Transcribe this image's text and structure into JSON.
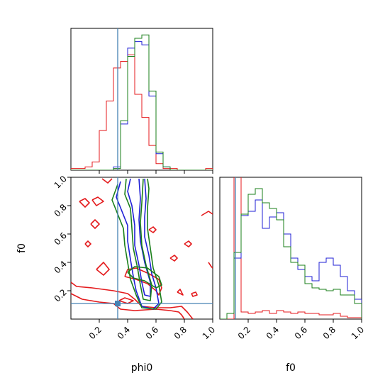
{
  "chart_data": {
    "type": "corner",
    "parameters": [
      "phi0",
      "f0"
    ],
    "axis_titles": {
      "x_left": "phi0",
      "x_right": "f0",
      "y_left": "f0"
    },
    "ranges": {
      "phi0": [
        0,
        1
      ],
      "f0": [
        0,
        1
      ]
    },
    "ticks": {
      "phi0": [
        0.2,
        0.4,
        0.6,
        0.8,
        1.0
      ],
      "f0": [
        0.2,
        0.4,
        0.6,
        0.8,
        1.0
      ]
    },
    "tick_labels": {
      "phi0": [
        "0.2",
        "0.4",
        "0.6",
        "0.8",
        "1.0"
      ],
      "f0": [
        "0.2",
        "0.4",
        "0.6",
        "0.8",
        "1.0"
      ]
    },
    "truth": {
      "phi0": 0.33,
      "f0": 0.11
    },
    "colors": {
      "red": "#e41a1c",
      "blue": "#1f1fd6",
      "green": "#1a7f1a",
      "truth": "#4682b4"
    },
    "hist_phi0": {
      "bin_edges": [
        0,
        0.05,
        0.1,
        0.15,
        0.2,
        0.25,
        0.3,
        0.35,
        0.4,
        0.45,
        0.5,
        0.55,
        0.6,
        0.65,
        0.7,
        0.75,
        0.8,
        0.85,
        0.9,
        0.95,
        1.0
      ],
      "series": [
        {
          "color": "red",
          "values": [
            0.01,
            0.01,
            0.02,
            0.05,
            0.24,
            0.42,
            0.62,
            0.66,
            0.7,
            0.46,
            0.32,
            0.15,
            0.04,
            0.01,
            0.01,
            0,
            0,
            0,
            0,
            0.01
          ]
        },
        {
          "color": "blue",
          "values": [
            0,
            0,
            0,
            0,
            0,
            0,
            0.02,
            0.28,
            0.74,
            0.78,
            0.76,
            0.45,
            0.1,
            0.02,
            0,
            0,
            0,
            0,
            0,
            0
          ]
        },
        {
          "color": "green",
          "values": [
            0,
            0,
            0,
            0,
            0,
            0,
            0.01,
            0.3,
            0.69,
            0.8,
            0.82,
            0.48,
            0.11,
            0.02,
            0,
            0,
            0,
            0,
            0,
            0
          ]
        }
      ]
    },
    "hist_f0": {
      "bin_edges": [
        0,
        0.05,
        0.1,
        0.15,
        0.2,
        0.25,
        0.3,
        0.35,
        0.4,
        0.45,
        0.5,
        0.55,
        0.6,
        0.65,
        0.7,
        0.75,
        0.8,
        0.85,
        0.9,
        0.95,
        1.0
      ],
      "series": [
        {
          "color": "red",
          "values": [
            0,
            0,
            5.4,
            0.05,
            0.04,
            0.05,
            0.06,
            0.04,
            0.06,
            0.05,
            0.04,
            0.05,
            0.04,
            0.04,
            0.03,
            0.03,
            0.04,
            0.02,
            0.01,
            0.01
          ]
        },
        {
          "color": "blue",
          "values": [
            0,
            0.04,
            0.43,
            0.73,
            0.76,
            0.84,
            0.64,
            0.72,
            0.75,
            0.6,
            0.43,
            0.35,
            0.3,
            0.27,
            0.4,
            0.43,
            0.38,
            0.3,
            0.2,
            0.14
          ]
        },
        {
          "color": "green",
          "values": [
            0,
            0.04,
            0.47,
            0.74,
            0.88,
            0.92,
            0.82,
            0.78,
            0.7,
            0.51,
            0.4,
            0.38,
            0.25,
            0.22,
            0.21,
            0.2,
            0.21,
            0.17,
            0.17,
            0.11
          ]
        }
      ]
    },
    "contours": [
      {
        "color": "red",
        "points": [
          [
            0.22,
            0.99
          ],
          [
            0.26,
            0.96
          ],
          [
            0.29,
            0.99
          ]
        ]
      },
      {
        "color": "red",
        "points": [
          [
            0.06,
            0.83
          ],
          [
            0.1,
            0.85
          ],
          [
            0.13,
            0.82
          ],
          [
            0.1,
            0.79
          ],
          [
            0.06,
            0.83
          ]
        ]
      },
      {
        "color": "red",
        "points": [
          [
            0.15,
            0.84
          ],
          [
            0.19,
            0.86
          ],
          [
            0.23,
            0.83
          ],
          [
            0.18,
            0.8
          ],
          [
            0.15,
            0.84
          ]
        ]
      },
      {
        "color": "red",
        "points": [
          [
            0.14,
            0.67
          ],
          [
            0.17,
            0.7
          ],
          [
            0.2,
            0.67
          ],
          [
            0.17,
            0.64
          ],
          [
            0.14,
            0.67
          ]
        ]
      },
      {
        "color": "red",
        "points": [
          [
            0.1,
            0.53
          ],
          [
            0.12,
            0.55
          ],
          [
            0.14,
            0.53
          ],
          [
            0.12,
            0.51
          ],
          [
            0.1,
            0.53
          ]
        ]
      },
      {
        "color": "red",
        "points": [
          [
            0.18,
            0.35
          ],
          [
            0.23,
            0.4
          ],
          [
            0.27,
            0.35
          ],
          [
            0.23,
            0.31
          ],
          [
            0.18,
            0.35
          ]
        ]
      },
      {
        "color": "red",
        "points": [
          [
            0.55,
            0.63
          ],
          [
            0.58,
            0.65
          ],
          [
            0.6,
            0.63
          ],
          [
            0.58,
            0.61
          ],
          [
            0.55,
            0.63
          ]
        ]
      },
      {
        "color": "red",
        "points": [
          [
            0.7,
            0.43
          ],
          [
            0.73,
            0.45
          ],
          [
            0.75,
            0.43
          ],
          [
            0.73,
            0.41
          ],
          [
            0.7,
            0.43
          ]
        ]
      },
      {
        "color": "red",
        "points": [
          [
            0.8,
            0.53
          ],
          [
            0.83,
            0.55
          ],
          [
            0.85,
            0.53
          ],
          [
            0.83,
            0.51
          ],
          [
            0.8,
            0.53
          ]
        ]
      },
      {
        "color": "red",
        "points": [
          [
            0.92,
            0.73
          ],
          [
            0.97,
            0.76
          ],
          [
            1.0,
            0.74
          ]
        ]
      },
      {
        "color": "red",
        "points": [
          [
            0.97,
            0.4
          ],
          [
            0.99,
            0.37
          ],
          [
            1.0,
            0.36
          ]
        ]
      },
      {
        "color": "red",
        "points": [
          [
            0.75,
            0.19
          ],
          [
            0.77,
            0.21
          ],
          [
            0.79,
            0.17
          ],
          [
            0.75,
            0.19
          ]
        ]
      },
      {
        "color": "red",
        "points": [
          [
            0.85,
            0.18
          ],
          [
            0.88,
            0.19
          ],
          [
            0.89,
            0.17
          ],
          [
            0.86,
            0.16
          ],
          [
            0.85,
            0.18
          ]
        ]
      },
      {
        "color": "red",
        "points": [
          [
            0.0,
            0.26
          ],
          [
            0.04,
            0.23
          ],
          [
            0.15,
            0.22
          ],
          [
            0.3,
            0.2
          ],
          [
            0.4,
            0.18
          ],
          [
            0.45,
            0.14
          ],
          [
            0.5,
            0.09
          ],
          [
            0.6,
            0.08
          ],
          [
            0.7,
            0.08
          ],
          [
            0.78,
            0.09
          ],
          [
            0.82,
            0.05
          ],
          [
            0.86,
            0.0
          ]
        ]
      },
      {
        "color": "red",
        "points": [
          [
            0.0,
            0.18
          ],
          [
            0.08,
            0.14
          ],
          [
            0.2,
            0.12
          ],
          [
            0.3,
            0.11
          ],
          [
            0.35,
            0.07
          ],
          [
            0.45,
            0.06
          ],
          [
            0.6,
            0.07
          ],
          [
            0.7,
            0.06
          ],
          [
            0.76,
            0.05
          ],
          [
            0.78,
            0.03
          ],
          [
            0.8,
            0.0
          ]
        ]
      },
      {
        "color": "red",
        "points": [
          [
            0.38,
            0.3
          ],
          [
            0.4,
            0.35
          ],
          [
            0.46,
            0.36
          ],
          [
            0.55,
            0.32
          ],
          [
            0.62,
            0.28
          ],
          [
            0.64,
            0.22
          ],
          [
            0.62,
            0.17
          ],
          [
            0.6,
            0.2
          ],
          [
            0.54,
            0.25
          ],
          [
            0.46,
            0.28
          ],
          [
            0.38,
            0.3
          ]
        ]
      },
      {
        "color": "red",
        "points": [
          [
            0.34,
            0.13
          ],
          [
            0.38,
            0.15
          ],
          [
            0.44,
            0.13
          ],
          [
            0.4,
            0.11
          ],
          [
            0.34,
            0.13
          ]
        ]
      },
      {
        "color": "blue",
        "points": [
          [
            0.35,
            0.97
          ],
          [
            0.32,
            0.86
          ],
          [
            0.36,
            0.76
          ],
          [
            0.4,
            0.66
          ],
          [
            0.4,
            0.55
          ],
          [
            0.42,
            0.42
          ],
          [
            0.44,
            0.3
          ],
          [
            0.46,
            0.2
          ],
          [
            0.5,
            0.09
          ],
          [
            0.58,
            0.07
          ],
          [
            0.62,
            0.11
          ],
          [
            0.6,
            0.22
          ],
          [
            0.57,
            0.32
          ],
          [
            0.55,
            0.45
          ],
          [
            0.52,
            0.58
          ],
          [
            0.52,
            0.72
          ],
          [
            0.53,
            0.85
          ],
          [
            0.52,
            0.99
          ]
        ]
      },
      {
        "color": "blue",
        "points": [
          [
            0.42,
            0.99
          ],
          [
            0.4,
            0.9
          ],
          [
            0.43,
            0.8
          ],
          [
            0.45,
            0.66
          ],
          [
            0.45,
            0.52
          ],
          [
            0.48,
            0.38
          ],
          [
            0.5,
            0.26
          ],
          [
            0.52,
            0.17
          ],
          [
            0.56,
            0.16
          ],
          [
            0.56,
            0.26
          ],
          [
            0.52,
            0.4
          ],
          [
            0.49,
            0.55
          ],
          [
            0.48,
            0.7
          ],
          [
            0.49,
            0.85
          ],
          [
            0.48,
            0.99
          ]
        ]
      },
      {
        "color": "green",
        "points": [
          [
            0.33,
            0.95
          ],
          [
            0.29,
            0.84
          ],
          [
            0.33,
            0.74
          ],
          [
            0.37,
            0.64
          ],
          [
            0.38,
            0.52
          ],
          [
            0.4,
            0.4
          ],
          [
            0.42,
            0.28
          ],
          [
            0.46,
            0.17
          ],
          [
            0.5,
            0.08
          ],
          [
            0.6,
            0.07
          ],
          [
            0.64,
            0.12
          ],
          [
            0.62,
            0.24
          ],
          [
            0.58,
            0.36
          ],
          [
            0.56,
            0.5
          ],
          [
            0.54,
            0.64
          ],
          [
            0.54,
            0.78
          ],
          [
            0.55,
            0.92
          ],
          [
            0.54,
            0.99
          ]
        ]
      },
      {
        "color": "green",
        "points": [
          [
            0.39,
            0.99
          ],
          [
            0.38,
            0.88
          ],
          [
            0.42,
            0.78
          ],
          [
            0.43,
            0.64
          ],
          [
            0.44,
            0.5
          ],
          [
            0.47,
            0.36
          ],
          [
            0.49,
            0.24
          ],
          [
            0.51,
            0.14
          ],
          [
            0.56,
            0.13
          ],
          [
            0.57,
            0.24
          ],
          [
            0.53,
            0.38
          ],
          [
            0.5,
            0.52
          ],
          [
            0.49,
            0.68
          ],
          [
            0.5,
            0.82
          ],
          [
            0.51,
            0.99
          ]
        ]
      },
      {
        "color": "green",
        "points": [
          [
            0.4,
            0.33
          ],
          [
            0.45,
            0.37
          ],
          [
            0.54,
            0.36
          ],
          [
            0.62,
            0.3
          ],
          [
            0.64,
            0.24
          ],
          [
            0.6,
            0.22
          ],
          [
            0.52,
            0.27
          ],
          [
            0.44,
            0.29
          ],
          [
            0.4,
            0.33
          ]
        ]
      }
    ]
  }
}
